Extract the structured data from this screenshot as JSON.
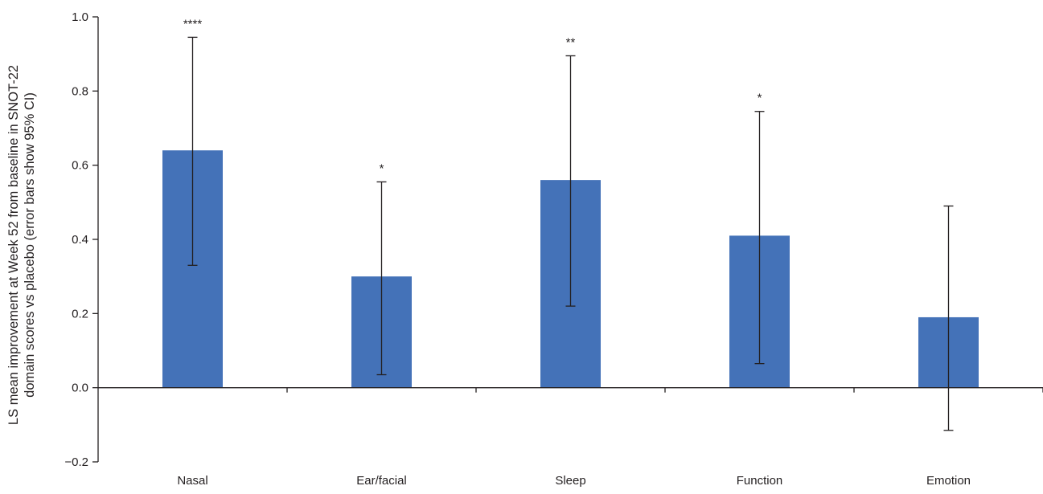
{
  "chart_data": {
    "type": "bar",
    "title": "",
    "xlabel": "",
    "ylabel_lines": [
      "LS mean improvement at Week 52 from baseline in  SNOT-22",
      "domain scores vs placebo (error bars show 95% CI)"
    ],
    "categories": [
      "Nasal",
      "Ear/facial",
      "Sleep",
      "Function",
      "Emotion"
    ],
    "series": [
      {
        "values": [
          0.64,
          0.3,
          0.56,
          0.41,
          0.19
        ],
        "ci_low": [
          0.33,
          0.035,
          0.22,
          0.065,
          -0.115
        ],
        "ci_high": [
          0.945,
          0.555,
          0.895,
          0.745,
          0.49
        ],
        "color": "#4472b8"
      }
    ],
    "significance": [
      "****",
      "*",
      "**",
      "*",
      ""
    ],
    "ylim": [
      -0.2,
      1.0
    ],
    "yticks": [
      -0.2,
      0.0,
      0.2,
      0.4,
      0.6,
      0.8,
      1.0
    ],
    "ytick_labels": [
      "−0.2",
      "0.0",
      "0.2",
      "0.4",
      "0.6",
      "0.8",
      "1.0"
    ],
    "grid": false,
    "legend": "none"
  }
}
